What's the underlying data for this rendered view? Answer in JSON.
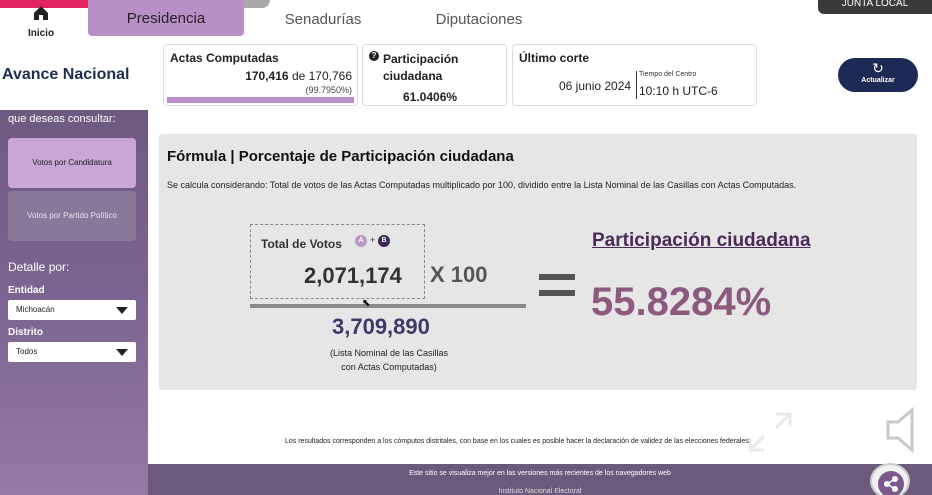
{
  "topbar": {
    "home_label": "Inicio",
    "tabs": [
      {
        "label": "Presidencia",
        "active": true
      },
      {
        "label": "Senadurías",
        "active": false
      },
      {
        "label": "Diputaciones",
        "active": false
      }
    ],
    "corner_text": "JUNTA LOCAL"
  },
  "header": {
    "title": "Avance Nacional",
    "actas": {
      "label": "Actas Computadas",
      "count": "170,416",
      "of": "de 170,766",
      "percent": "(99.7950%)",
      "progress_fraction": 0.99795
    },
    "participacion": {
      "label_line1": "Participación",
      "label_line2": "ciudadana",
      "value": "61.0406%"
    },
    "corte": {
      "label": "Último corte",
      "date": "06 junio 2024",
      "tz_label": "Tiempo del Centro",
      "time": "10:10 h UTC-6"
    },
    "refresh_label": "Actualizar"
  },
  "sidebar": {
    "question": "que deseas consultar:",
    "buttons": [
      {
        "label": "Votos por Candidatura",
        "active": true
      },
      {
        "label": "Votos por Partido Político",
        "active": false
      }
    ],
    "detail_label": "Detalle por:",
    "entidad": {
      "label": "Entidad",
      "value": "Michoacán"
    },
    "distrito": {
      "label": "Distrito",
      "value": "Todos"
    }
  },
  "formula": {
    "title": "Fórmula | Porcentaje de Participación ciudadana",
    "description": "Se calcula considerando: Total de votos de las Actas Computadas multiplicado por 100, dividido entre la Lista Nominal de las Casillas con Actas Computadas.",
    "total_label": "Total de Votos",
    "badge_a": "A",
    "plus": "+",
    "badge_b": "B",
    "numerator": "2,071,174",
    "multiplier": "X 100",
    "denominator": "3,709,890",
    "denominator_note_line1": "(Lista Nominal de las Casillas",
    "denominator_note_line2": "con Actas Computadas)",
    "result_title": "Participación ciudadana",
    "result_value": "55.8284%"
  },
  "footer": {
    "note": "Los resultados corresponden a los cómputos distritales, con base en los cuales es posible hacer la declaración de validez de las elecciones federales.",
    "browser_note": "Este sitio se visualiza mejor en las versiones más recientes de los navegadores web",
    "institute": "Instituto Nacional Electoral"
  },
  "colors": {
    "tab_active": "#b98fc7",
    "navy": "#1d2a55",
    "result": "#8d5a7e",
    "sidebar": "#7c6592"
  }
}
